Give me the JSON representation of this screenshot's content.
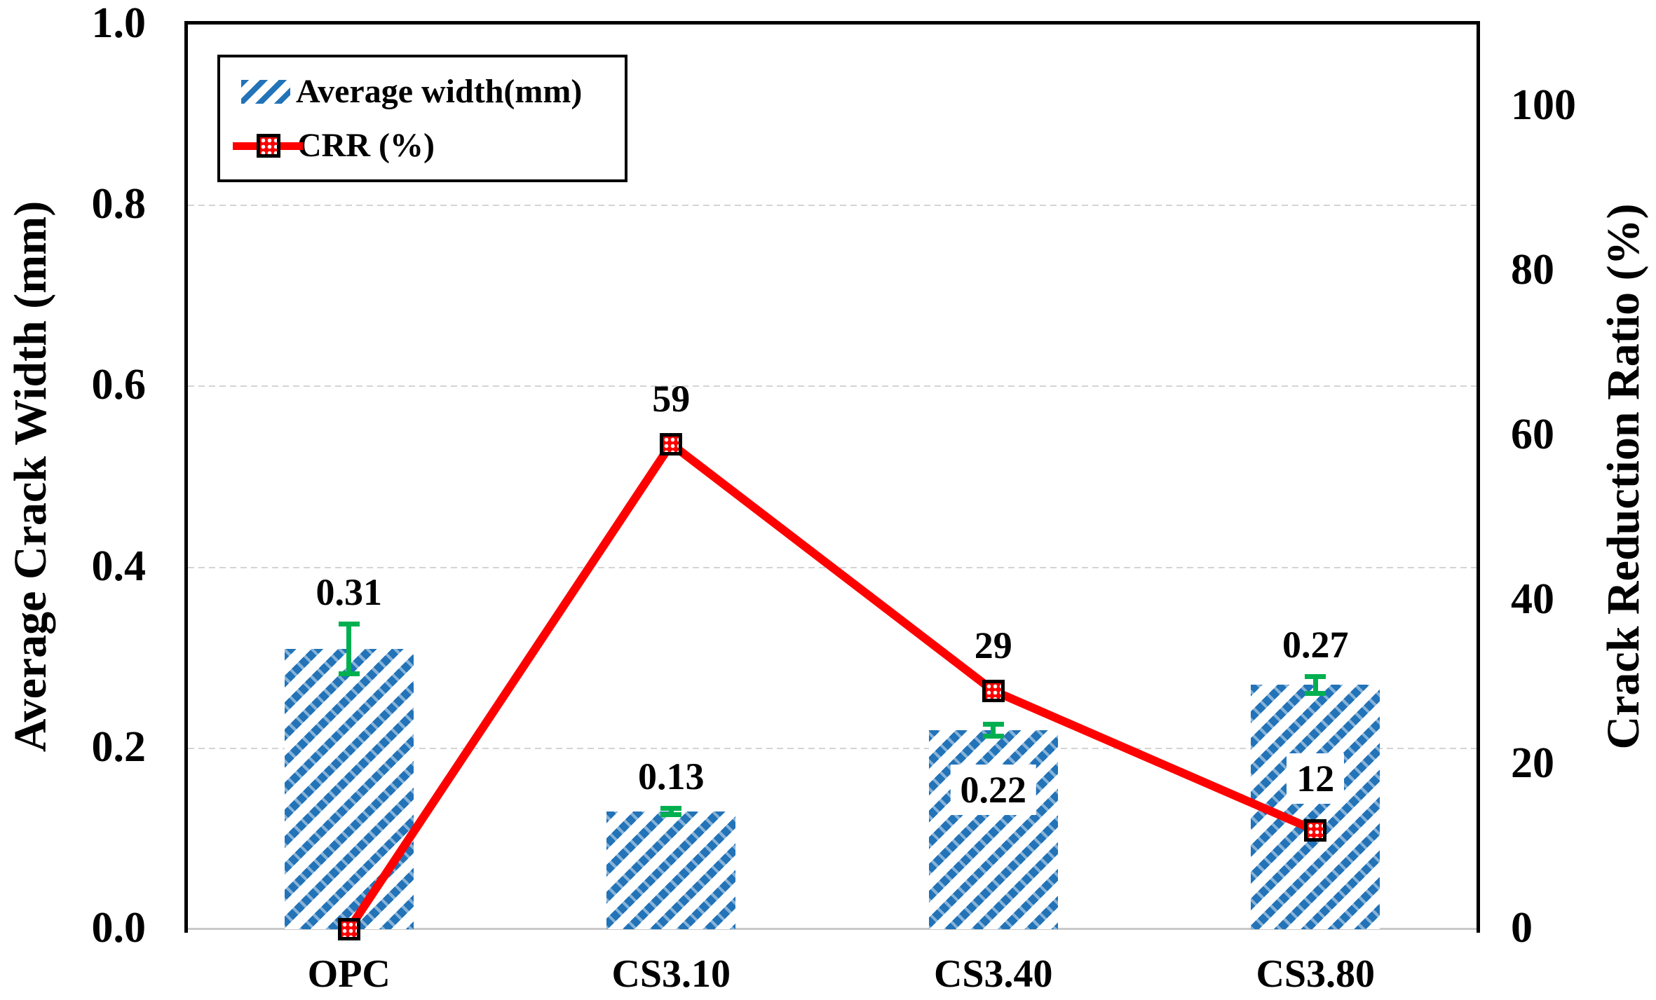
{
  "chart_data": {
    "type": "combo-bar-line",
    "categories": [
      "OPC",
      "CS3.10",
      "CS3.40",
      "CS3.80"
    ],
    "series": [
      {
        "name": "Average width(mm)",
        "type": "bar",
        "axis": "left",
        "values": [
          0.31,
          0.13,
          0.22,
          0.27
        ],
        "data_labels": [
          "0.31",
          "0.13",
          "0.22",
          "0.27"
        ],
        "label_boxed": [
          false,
          false,
          true,
          false
        ],
        "error_bars_mm": [
          0.028,
          0.004,
          0.007,
          0.01
        ],
        "fill_color": "#2273B8",
        "hatch": "diagonal-up",
        "error_color": "#00B050"
      },
      {
        "name": "CRR (%)",
        "type": "line",
        "axis": "right",
        "values": [
          0,
          59,
          29,
          12
        ],
        "data_labels": [
          "",
          "59",
          "29",
          "12"
        ],
        "label_boxed": [
          false,
          false,
          false,
          true
        ],
        "line_color": "#FF0000",
        "marker": "square-black-border-dotted-red"
      }
    ],
    "left_axis": {
      "title": "Average Crack Width (mm)",
      "min": 0.0,
      "max": 1.0,
      "tick_labels": [
        "1.0",
        "0.8",
        "0.6",
        "0.4",
        "0.2",
        "0.0"
      ],
      "tick_values": [
        1.0,
        0.8,
        0.6,
        0.4,
        0.2,
        0.0
      ]
    },
    "right_axis": {
      "title": "Crack Reduction Ratio (%)",
      "min": 0,
      "max": 110,
      "tick_labels": [
        "100",
        "80",
        "60",
        "40",
        "20",
        "0"
      ],
      "tick_values": [
        100,
        80,
        60,
        40,
        20,
        0
      ]
    },
    "legend": {
      "position": "top-left",
      "items": [
        {
          "label": "Average width(mm)",
          "swatch": "blue-hatch"
        },
        {
          "label": "CRR (%)",
          "swatch": "red-line-marker"
        }
      ]
    },
    "gridlines": {
      "horizontal_at_left_values": [
        0.8,
        0.6,
        0.4,
        0.2
      ],
      "style": "dashed",
      "color": "#D4D4D4"
    }
  },
  "colors": {
    "bar_blue": "#2273B8",
    "line_red": "#FF0000",
    "error_green": "#00B050",
    "grid_gray": "#D4D4D4",
    "axis_black": "#000000",
    "background": "#FFFFFF"
  }
}
